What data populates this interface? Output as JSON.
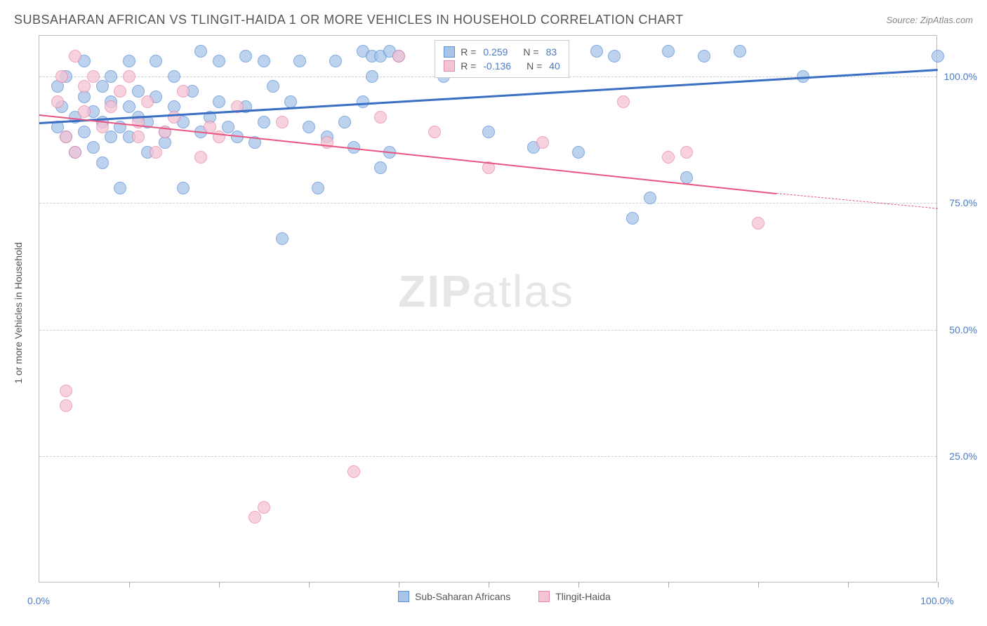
{
  "title": "SUBSAHARAN AFRICAN VS TLINGIT-HAIDA 1 OR MORE VEHICLES IN HOUSEHOLD CORRELATION CHART",
  "source": "Source: ZipAtlas.com",
  "watermark": {
    "part1": "ZIP",
    "part2": "atlas"
  },
  "y_axis_label": "1 or more Vehicles in Household",
  "chart": {
    "type": "scatter",
    "xlim": [
      0,
      100
    ],
    "ylim": [
      0,
      108
    ],
    "background_color": "#ffffff",
    "grid_color": "#d0d0d0",
    "axis_label_color": "#4a7bc8",
    "title_color": "#555555",
    "yticks": [
      {
        "value": 25,
        "label": "25.0%"
      },
      {
        "value": 50,
        "label": "50.0%"
      },
      {
        "value": 75,
        "label": "75.0%"
      },
      {
        "value": 100,
        "label": "100.0%"
      }
    ],
    "xticks": [
      10,
      20,
      30,
      40,
      50,
      60,
      70,
      80,
      90,
      100
    ],
    "xtick_labels": [
      {
        "value": 0,
        "label": "0.0%"
      },
      {
        "value": 100,
        "label": "100.0%"
      }
    ],
    "series": [
      {
        "name": "Sub-Saharan Africans",
        "marker_fill": "#a8c4e8",
        "marker_stroke": "#5b8fd6",
        "marker_radius": 9,
        "marker_opacity": 0.75,
        "trend_color": "#3a6fc4",
        "trend_width": 3,
        "R": "0.259",
        "N": "83",
        "trend": {
          "x1": 0,
          "y1": 91,
          "x2": 100,
          "y2": 101.5
        },
        "points_x": [
          2,
          2.5,
          2,
          3,
          3,
          4,
          4,
          5,
          5,
          5,
          6,
          6,
          7,
          7,
          7,
          8,
          8,
          8,
          9,
          9,
          10,
          10,
          10,
          11,
          11,
          12,
          12,
          13,
          13,
          14,
          14,
          15,
          15,
          16,
          16,
          17,
          18,
          18,
          19,
          20,
          20,
          21,
          22,
          23,
          23,
          24,
          25,
          25,
          26,
          27,
          28,
          29,
          30,
          31,
          32,
          33,
          34,
          35,
          36,
          36,
          37,
          37,
          38,
          38,
          39,
          39,
          40,
          45,
          48,
          50,
          55,
          58,
          60,
          62,
          64,
          66,
          68,
          70,
          72,
          74,
          78,
          85,
          100
        ],
        "points_y": [
          90,
          94,
          98,
          88,
          100,
          85,
          92,
          96,
          103,
          89,
          86,
          93,
          91,
          98,
          83,
          95,
          88,
          100,
          90,
          78,
          94,
          88,
          103,
          92,
          97,
          85,
          91,
          96,
          103,
          89,
          87,
          94,
          100,
          91,
          78,
          97,
          89,
          105,
          92,
          103,
          95,
          90,
          88,
          94,
          104,
          87,
          103,
          91,
          98,
          68,
          95,
          103,
          90,
          78,
          88,
          103,
          91,
          86,
          105,
          95,
          104,
          100,
          104,
          82,
          85,
          105,
          104,
          100,
          104,
          89,
          86,
          103,
          85,
          105,
          104,
          72,
          76,
          105,
          80,
          104,
          105,
          100,
          104
        ]
      },
      {
        "name": "Tlingit-Haida",
        "marker_fill": "#f5c4d4",
        "marker_stroke": "#e888a8",
        "marker_radius": 9,
        "marker_opacity": 0.75,
        "trend_color": "#e8557f",
        "trend_width": 2,
        "R": "-0.136",
        "N": "40",
        "trend": {
          "x1": 0,
          "y1": 92.5,
          "x2": 82,
          "y2": 77
        },
        "trend_dash": {
          "x1": 82,
          "y1": 77,
          "x2": 100,
          "y2": 74
        },
        "points_x": [
          2,
          2.5,
          3,
          3,
          3,
          4,
          4,
          5,
          5,
          6,
          7,
          8,
          9,
          10,
          11,
          11,
          12,
          13,
          14,
          15,
          16,
          18,
          19,
          20,
          22,
          24,
          25,
          27,
          32,
          35,
          38,
          40,
          44,
          48,
          50,
          56,
          65,
          70,
          72,
          80
        ],
        "points_y": [
          95,
          100,
          88,
          35,
          38,
          85,
          104,
          98,
          93,
          100,
          90,
          94,
          97,
          100,
          88,
          91,
          95,
          85,
          89,
          92,
          97,
          84,
          90,
          88,
          94,
          13,
          15,
          91,
          87,
          22,
          92,
          104,
          89,
          104,
          82,
          87,
          95,
          84,
          85,
          71
        ]
      }
    ],
    "bottom_legend": [
      {
        "label": "Sub-Saharan Africans",
        "fill": "#a8c4e8",
        "stroke": "#5b8fd6"
      },
      {
        "label": "Tlingit-Haida",
        "fill": "#f5c4d4",
        "stroke": "#e888a8"
      }
    ]
  }
}
